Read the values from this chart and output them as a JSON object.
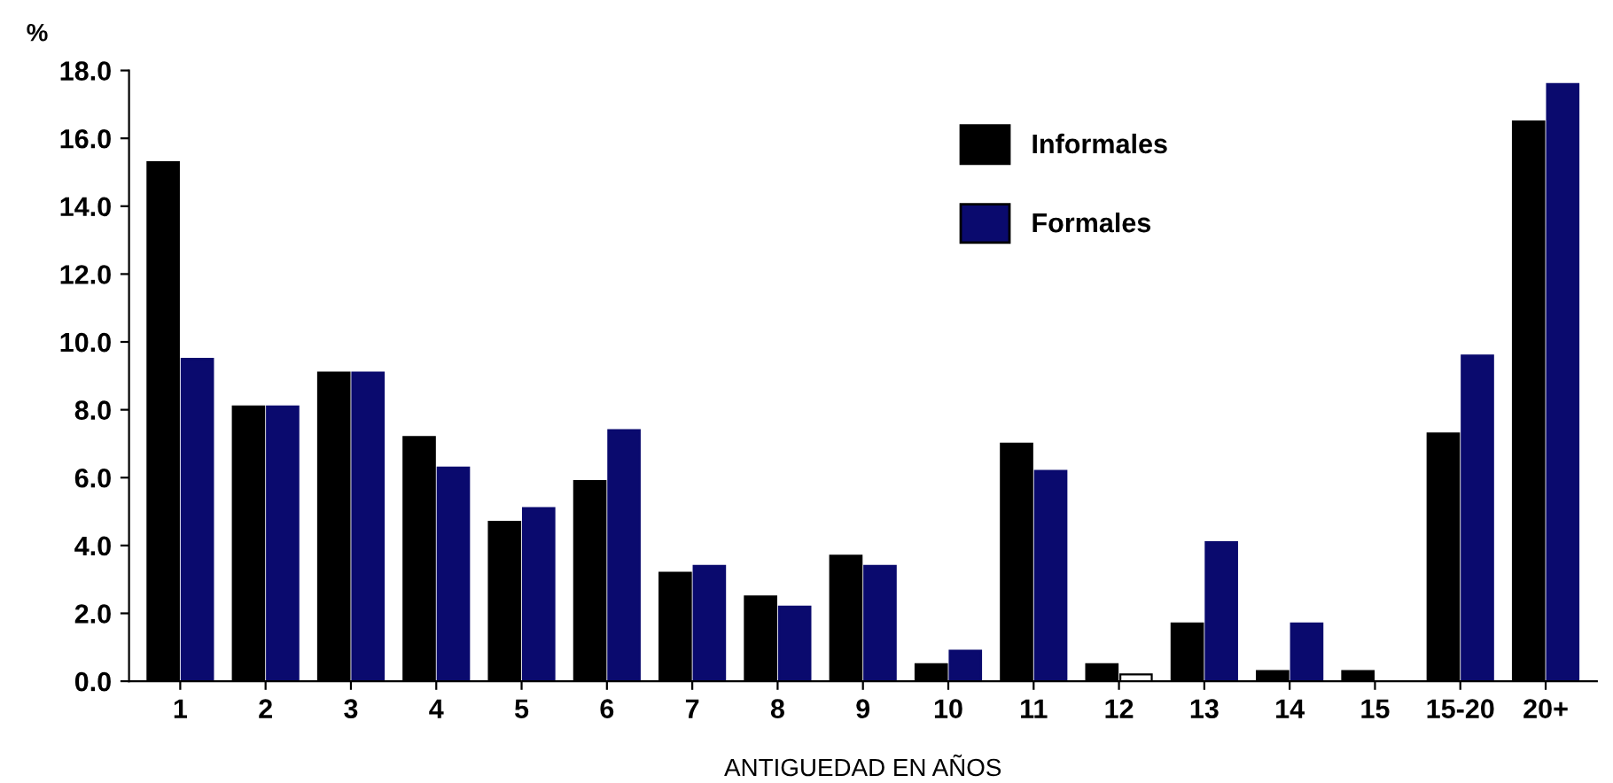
{
  "chart_data": {
    "type": "bar",
    "ylabel": "%",
    "xlabel": "ANTIGUEDAD EN AÑOS",
    "categories": [
      "1",
      "2",
      "3",
      "4",
      "5",
      "6",
      "7",
      "8",
      "9",
      "10",
      "11",
      "12",
      "13",
      "14",
      "15",
      "15-20",
      "20+"
    ],
    "series": [
      {
        "name": "Informales",
        "color": "#000000",
        "values": [
          15.3,
          8.1,
          9.1,
          7.2,
          4.7,
          5.9,
          3.2,
          2.5,
          3.7,
          0.5,
          7.0,
          0.5,
          1.7,
          0.3,
          0.3,
          7.3,
          16.5
        ]
      },
      {
        "name": "Formales",
        "color": "#0a0a6e",
        "colors": [
          "#0a0a6e",
          "#0a0a6e",
          "#0a0a6e",
          "#0a0a6e",
          "#0a0a6e",
          "#0a0a6e",
          "#0a0a6e",
          "#0a0a6e",
          "#0a0a6e",
          "#0a0a6e",
          "#0a0a6e",
          "#ffffff",
          "#0a0a6e",
          "#0a0a6e",
          "#0a0a6e",
          "#0a0a6e",
          "#0a0a6e"
        ],
        "values": [
          9.5,
          8.1,
          9.1,
          6.3,
          5.1,
          7.4,
          3.4,
          2.2,
          3.4,
          0.9,
          6.2,
          0.2,
          4.1,
          1.7,
          0,
          9.6,
          17.6
        ]
      }
    ],
    "ylim": [
      0,
      18
    ],
    "yticks": [
      {
        "value": 0,
        "label": "0.0"
      },
      {
        "value": 2,
        "label": "2.0"
      },
      {
        "value": 4,
        "label": "4.0"
      },
      {
        "value": 6,
        "label": "6.0"
      },
      {
        "value": 8,
        "label": "8.0"
      },
      {
        "value": 10,
        "label": "10.0"
      },
      {
        "value": 12,
        "label": "12.0"
      },
      {
        "value": 14,
        "label": "14.0"
      },
      {
        "value": 16,
        "label": "16.0"
      },
      {
        "value": 18,
        "label": "18.0"
      }
    ],
    "grid": false,
    "legend": "top"
  }
}
